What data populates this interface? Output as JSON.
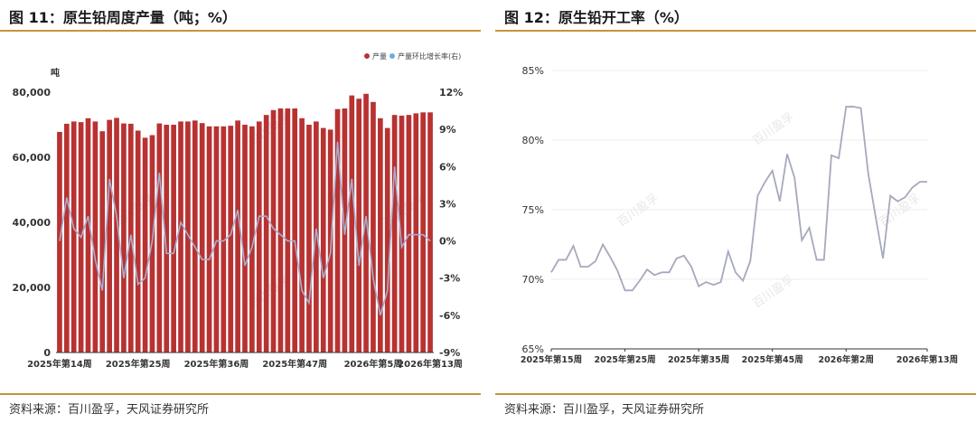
{
  "left": {
    "title": "图 11：原生铅周度产量（吨；%）",
    "source": "资料来源：百川盈孚，天风证券研究所",
    "watermark": "百川盈孚"
  },
  "right": {
    "title": "图 12：原生铅开工率（%）",
    "source": "资料来源：百川盈孚，天风证券研究所",
    "watermark": "百川盈孚"
  },
  "chart_data": [
    {
      "type": "bar",
      "y_unit_label": "吨",
      "legend_position": "top-right",
      "colors": {
        "bar": "#b83232",
        "line": "#a8aed0"
      },
      "series": [
        {
          "name": "产量",
          "type": "bar",
          "axis": "left",
          "values": [
            67800,
            70300,
            71000,
            70800,
            72000,
            71000,
            68000,
            71500,
            72100,
            70400,
            70300,
            68200,
            66000,
            66800,
            70400,
            70000,
            70000,
            71000,
            71000,
            71300,
            70500,
            69500,
            69500,
            69500,
            69700,
            71300,
            70000,
            69500,
            71000,
            73000,
            74500,
            75000,
            75000,
            75000,
            72000,
            70000,
            71000,
            69000,
            68500,
            74800,
            75000,
            79000,
            78000,
            79500,
            77000,
            72000,
            69000,
            73000,
            72800,
            73000,
            73500,
            73800,
            73800
          ]
        },
        {
          "name": "产量环比增长率(右)",
          "type": "line",
          "axis": "right",
          "values": [
            0,
            3.5,
            1,
            0.3,
            2,
            -1.5,
            -4,
            5,
            2,
            -3,
            0.5,
            -3.5,
            -3,
            0,
            5.5,
            -1,
            -1,
            1.5,
            0.5,
            -0.5,
            -1.5,
            -1.5,
            0,
            0,
            0.5,
            2.5,
            -2,
            -0.5,
            2,
            2,
            1,
            0.5,
            0,
            0,
            -4,
            -5,
            1,
            -3,
            -1,
            8,
            0.5,
            5,
            -2,
            2,
            -3,
            -6,
            -4,
            6,
            -0.5,
            0.5,
            0.5,
            0.5,
            0
          ]
        }
      ],
      "y_left": {
        "min": 0,
        "max": 80000,
        "ticks": [
          "0",
          "20,000",
          "40,000",
          "60,000",
          "80,000"
        ]
      },
      "y_right": {
        "min": -9,
        "max": 12,
        "ticks": [
          "-9%",
          "-6%",
          "-3%",
          "0%",
          "3%",
          "6%",
          "9%",
          "12%"
        ]
      },
      "x_ticks": [
        {
          "index": 0,
          "label": "2025年第14周"
        },
        {
          "index": 11,
          "label": "2025年第25周"
        },
        {
          "index": 22,
          "label": "2025年第36周"
        },
        {
          "index": 33,
          "label": "2025年第47周"
        },
        {
          "index": 44,
          "label": "2026年第5周"
        },
        {
          "index": 52,
          "label": "2026年第13周"
        }
      ]
    },
    {
      "type": "line",
      "colors": {
        "line": "#a6a9bd"
      },
      "series": [
        {
          "values": [
            70.5,
            71.4,
            71.4,
            72.4,
            70.9,
            70.9,
            71.3,
            72.5,
            71.6,
            70.6,
            69.2,
            69.2,
            69.9,
            70.7,
            70.3,
            70.5,
            70.5,
            71.5,
            71.7,
            70.9,
            69.5,
            69.8,
            69.6,
            69.8,
            72.0,
            70.5,
            69.9,
            71.3,
            76.0,
            77.0,
            77.8,
            75.6,
            79.0,
            77.3,
            72.8,
            73.7,
            71.4,
            71.4,
            78.9,
            78.7,
            82.4,
            82.4,
            82.3,
            77.6,
            74.5,
            71.5,
            76.0,
            75.6,
            75.9,
            76.6,
            77.0,
            77.0
          ]
        }
      ],
      "y": {
        "min": 65,
        "max": 85,
        "ticks": [
          "65%",
          "70%",
          "75%",
          "80%",
          "85%"
        ]
      },
      "x_ticks": [
        {
          "index": 0,
          "label": "2025年第15周"
        },
        {
          "index": 10,
          "label": "2025年第25周"
        },
        {
          "index": 20,
          "label": "2025年第35周"
        },
        {
          "index": 30,
          "label": "2025年第45周"
        },
        {
          "index": 40,
          "label": "2026年第2周"
        },
        {
          "index": 51,
          "label": "2026年第13周"
        }
      ]
    }
  ]
}
